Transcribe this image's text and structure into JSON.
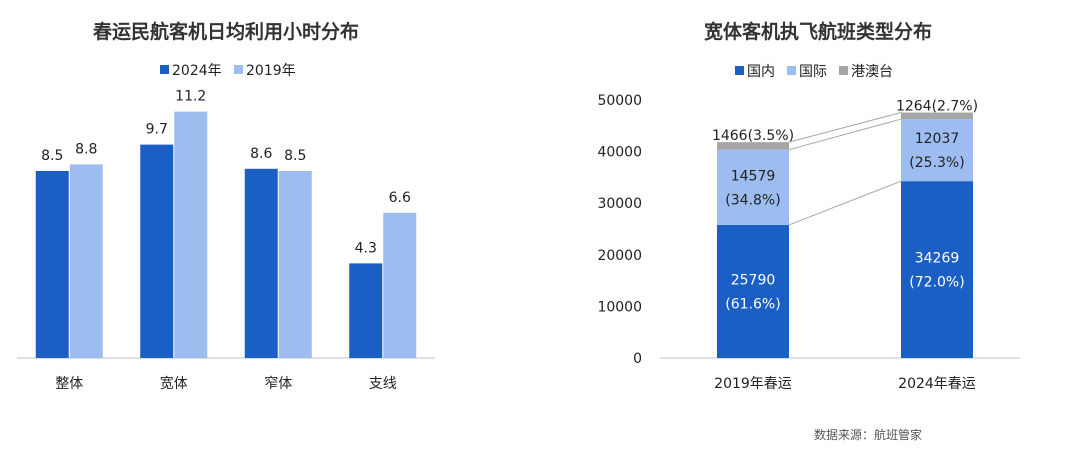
{
  "colors": {
    "primary": "#1b5ec4",
    "secondary": "#9dbdf0",
    "tertiary": "#a6a6a6",
    "axis": "#bfbfbf",
    "connector": "#a6a6a6"
  },
  "source_note": "数据来源：航班管家",
  "chart_data": [
    {
      "type": "bar",
      "title": "春运民航客机日均利用小时分布",
      "categories": [
        "整体",
        "宽体",
        "窄体",
        "支线"
      ],
      "series": [
        {
          "name": "2024年",
          "values": [
            8.5,
            9.7,
            8.6,
            4.3
          ],
          "labels": [
            "8.5",
            "9.7",
            "8.6",
            "4.3"
          ]
        },
        {
          "name": "2019年",
          "values": [
            8.8,
            11.2,
            8.5,
            6.6
          ],
          "labels": [
            "8.8",
            "11.2",
            "8.5",
            "6.6"
          ]
        }
      ],
      "ylim": [
        0,
        12
      ],
      "grid": false,
      "legend": "top"
    },
    {
      "type": "bar",
      "stacked": true,
      "title": "宽体客机执飞航班类型分布",
      "categories": [
        "2019年春运",
        "2024年春运"
      ],
      "series": [
        {
          "name": "国内",
          "values": [
            25790,
            34269
          ],
          "labels": [
            [
              "25790",
              "(61.6%)"
            ],
            [
              "34269",
              "(72.0%)"
            ]
          ]
        },
        {
          "name": "国际",
          "values": [
            14579,
            12037
          ],
          "labels": [
            [
              "14579",
              "(34.8%)"
            ],
            [
              "12037",
              "(25.3%)"
            ]
          ]
        },
        {
          "name": "港澳台",
          "values": [
            1466,
            1264
          ],
          "labels": [
            [
              "1466(3.5%)"
            ],
            [
              "1264(2.7%)"
            ]
          ]
        }
      ],
      "ylim": [
        0,
        50000
      ],
      "yticks": [
        "0",
        "10000",
        "20000",
        "30000",
        "40000",
        "50000"
      ],
      "grid": false,
      "legend": "top"
    }
  ]
}
